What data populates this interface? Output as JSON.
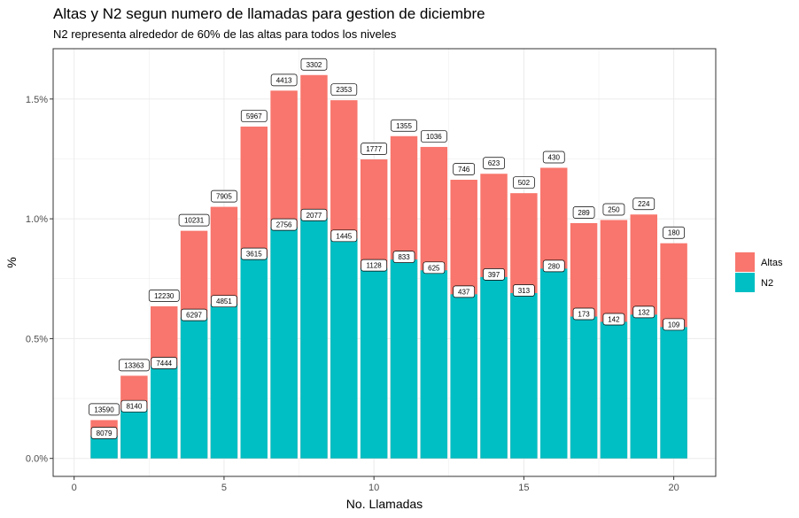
{
  "chart_data": {
    "type": "bar",
    "stacked_overlay": true,
    "title": "Altas y N2 segun numero de llamadas para gestion de diciembre",
    "subtitle": "N2 representa alrededor de 60% de las altas para todos los niveles",
    "xlabel": "No. Llamadas",
    "ylabel": "%",
    "xlim": [
      -0.7,
      21.4
    ],
    "ylim": [
      -0.00075,
      0.0171
    ],
    "x_ticks": [
      0,
      5,
      10,
      15,
      20
    ],
    "x_tick_labels": [
      "0",
      "5",
      "10",
      "15",
      "20"
    ],
    "y_ticks": [
      0,
      0.005,
      0.01,
      0.015
    ],
    "y_tick_labels": [
      "0.0%",
      "0.5%",
      "1.0%",
      "1.5%"
    ],
    "grid": true,
    "legend_position": "right",
    "x": [
      1,
      2,
      3,
      4,
      5,
      6,
      7,
      8,
      9,
      10,
      11,
      12,
      13,
      14,
      15,
      16,
      17,
      18,
      19,
      20
    ],
    "series": [
      {
        "name": "Altas",
        "color": "#F8766D",
        "values": [
          0.0016,
          0.00345,
          0.00635,
          0.0095,
          0.0105,
          0.01385,
          0.01535,
          0.016,
          0.01495,
          0.01248,
          0.01345,
          0.013,
          0.01163,
          0.01188,
          0.01107,
          0.01213,
          0.00982,
          0.00995,
          0.01018,
          0.00898
        ],
        "labels": [
          "13590",
          "13363",
          "12230",
          "10231",
          "7905",
          "5967",
          "4413",
          "3302",
          "2353",
          "1777",
          "1355",
          "1036",
          "746",
          "623",
          "502",
          "430",
          "289",
          "250",
          "224",
          "180"
        ]
      },
      {
        "name": "N2",
        "color": "#00BFC4",
        "values": [
          0.00095,
          0.00207,
          0.00387,
          0.00588,
          0.00645,
          0.00843,
          0.00965,
          0.01005,
          0.00918,
          0.00795,
          0.0083,
          0.00785,
          0.00685,
          0.00757,
          0.0069,
          0.00792,
          0.00592,
          0.0057,
          0.006,
          0.00548
        ],
        "labels": [
          "8079",
          "8140",
          "7444",
          "6297",
          "4851",
          "3615",
          "2756",
          "2077",
          "1445",
          "1128",
          "833",
          "625",
          "437",
          "397",
          "313",
          "280",
          "173",
          "142",
          "132",
          "109"
        ]
      }
    ]
  },
  "colors": {
    "grid": "#EBEBEB",
    "panel_border": "#333333"
  }
}
